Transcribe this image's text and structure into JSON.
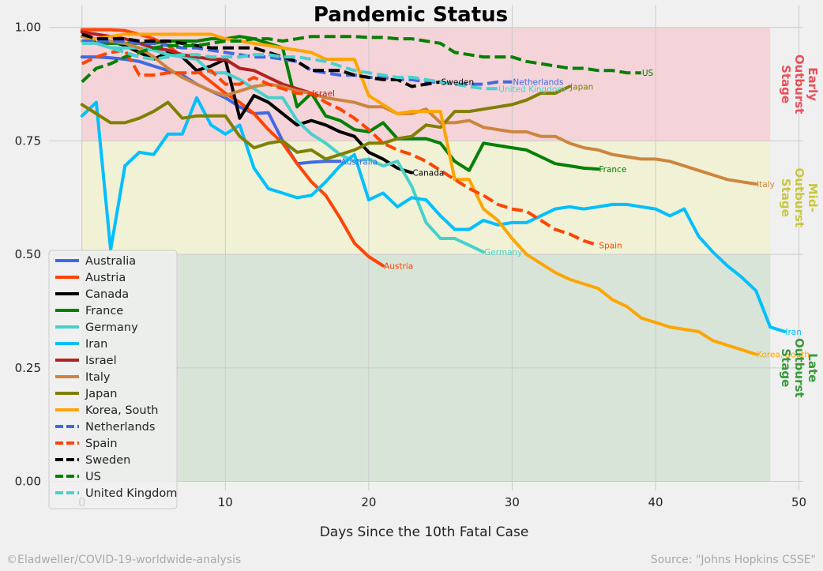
{
  "chart_data": {
    "type": "line",
    "title": "Pandemic Status",
    "xlabel": "Days Since the 10th Fatal Case",
    "ylabel": "",
    "xlim": [
      -2.3,
      50.3
    ],
    "ylim": [
      -0.02,
      1.05
    ],
    "xticks": [
      0,
      10,
      20,
      30,
      40,
      50
    ],
    "yticks": [
      0.0,
      0.25,
      0.5,
      0.75,
      1.0
    ],
    "ytick_labels": [
      "0.00",
      "0.25",
      "0.50",
      "0.75",
      "1.00"
    ],
    "grid": true,
    "legend_position": "lower-left",
    "bands": [
      {
        "from": 0.75,
        "to": 1.0,
        "x_to": 48,
        "color": "#f4d4d8",
        "label": "Early Outburst Stage",
        "lines": [
          "Early",
          "Outburst",
          "Stage"
        ],
        "text_color": "#e8505a"
      },
      {
        "from": 0.5,
        "to": 0.75,
        "x_to": 48,
        "color": "#f1f1d5",
        "label": "Mid-Outburst Stage",
        "lines": [
          "Mid-",
          "Outburst",
          "Stage"
        ],
        "text_color": "#c8c840"
      },
      {
        "from": 0.0,
        "to": 0.5,
        "x_to": 48,
        "color": "#d8e4d8",
        "label": "Late Outburst Stage",
        "lines": [
          "Late",
          "Outburst",
          "Stage"
        ],
        "text_color": "#3a9a3a"
      }
    ],
    "series": [
      {
        "name": "Australia",
        "color": "#4169e1",
        "dash": false,
        "y": [
          0.935,
          0.935,
          0.933,
          0.93,
          0.925,
          0.915,
          0.905,
          0.895,
          0.875,
          0.86,
          0.845,
          0.825,
          0.81,
          0.812,
          0.75,
          0.7,
          0.703,
          0.705,
          0.705
        ]
      },
      {
        "name": "Austria",
        "color": "#ff4500",
        "dash": false,
        "y": [
          0.995,
          0.995,
          0.995,
          0.993,
          0.985,
          0.975,
          0.96,
          0.935,
          0.905,
          0.88,
          0.855,
          0.835,
          0.81,
          0.775,
          0.745,
          0.7,
          0.66,
          0.63,
          0.58,
          0.525,
          0.495,
          0.475
        ]
      },
      {
        "name": "Canada",
        "color": "#000000",
        "dash": false,
        "y": [
          0.99,
          0.965,
          0.97,
          0.96,
          0.945,
          0.93,
          0.945,
          0.935,
          0.905,
          0.915,
          0.93,
          0.8,
          0.85,
          0.835,
          0.81,
          0.785,
          0.795,
          0.785,
          0.77,
          0.76,
          0.725,
          0.71,
          0.69,
          0.68
        ]
      },
      {
        "name": "France",
        "color": "#008000",
        "dash": false,
        "y": [
          0.97,
          0.965,
          0.965,
          0.965,
          0.965,
          0.965,
          0.97,
          0.97,
          0.97,
          0.975,
          0.975,
          0.98,
          0.975,
          0.965,
          0.955,
          0.825,
          0.855,
          0.805,
          0.795,
          0.775,
          0.77,
          0.79,
          0.755,
          0.755,
          0.755,
          0.745,
          0.705,
          0.685,
          0.745,
          0.74,
          0.735,
          0.73,
          0.715,
          0.7,
          0.695,
          0.69,
          0.688
        ]
      },
      {
        "name": "Germany",
        "color": "#48d1cc",
        "dash": false,
        "y": [
          0.97,
          0.965,
          0.955,
          0.955,
          0.955,
          0.95,
          0.94,
          0.935,
          0.93,
          0.9,
          0.9,
          0.885,
          0.865,
          0.845,
          0.845,
          0.795,
          0.765,
          0.745,
          0.72,
          0.705,
          0.71,
          0.695,
          0.705,
          0.65,
          0.57,
          0.535,
          0.535,
          0.52,
          0.505
        ]
      },
      {
        "name": "Iran",
        "color": "#00bfff",
        "dash": false,
        "y": [
          0.805,
          0.835,
          0.51,
          0.695,
          0.725,
          0.72,
          0.765,
          0.765,
          0.845,
          0.785,
          0.765,
          0.785,
          0.69,
          0.645,
          0.635,
          0.625,
          0.63,
          0.66,
          0.695,
          0.72,
          0.62,
          0.635,
          0.605,
          0.625,
          0.62,
          0.585,
          0.555,
          0.555,
          0.575,
          0.565,
          0.57,
          0.57,
          0.585,
          0.6,
          0.605,
          0.6,
          0.605,
          0.61,
          0.61,
          0.605,
          0.6,
          0.585,
          0.6,
          0.54,
          0.505,
          0.475,
          0.45,
          0.42,
          0.34,
          0.33
        ]
      },
      {
        "name": "Israel",
        "color": "#b22222",
        "dash": false,
        "y": [
          0.99,
          0.985,
          0.98,
          0.975,
          0.965,
          0.955,
          0.95,
          0.94,
          0.935,
          0.93,
          0.93,
          0.91,
          0.905,
          0.89,
          0.875,
          0.865,
          0.855
        ]
      },
      {
        "name": "Italy",
        "color": "#cd853f",
        "dash": false,
        "y": [
          0.98,
          0.975,
          0.97,
          0.965,
          0.955,
          0.935,
          0.91,
          0.89,
          0.875,
          0.86,
          0.85,
          0.86,
          0.87,
          0.875,
          0.87,
          0.86,
          0.855,
          0.845,
          0.84,
          0.835,
          0.825,
          0.825,
          0.81,
          0.81,
          0.82,
          0.79,
          0.79,
          0.795,
          0.78,
          0.775,
          0.77,
          0.77,
          0.76,
          0.76,
          0.745,
          0.735,
          0.73,
          0.72,
          0.715,
          0.71,
          0.71,
          0.705,
          0.695,
          0.685,
          0.675,
          0.665,
          0.66,
          0.655
        ]
      },
      {
        "name": "Japan",
        "color": "#808000",
        "dash": false,
        "y": [
          0.83,
          0.81,
          0.79,
          0.79,
          0.8,
          0.815,
          0.835,
          0.8,
          0.805,
          0.805,
          0.805,
          0.76,
          0.735,
          0.745,
          0.75,
          0.725,
          0.73,
          0.71,
          0.72,
          0.73,
          0.745,
          0.745,
          0.755,
          0.76,
          0.785,
          0.78,
          0.815,
          0.815,
          0.82,
          0.825,
          0.83,
          0.84,
          0.855,
          0.855,
          0.87
        ]
      },
      {
        "name": "Korea, South",
        "color": "#ffa500",
        "dash": false,
        "y": [
          0.97,
          0.975,
          0.98,
          0.985,
          0.985,
          0.985,
          0.985,
          0.985,
          0.985,
          0.985,
          0.975,
          0.97,
          0.965,
          0.96,
          0.955,
          0.95,
          0.945,
          0.93,
          0.93,
          0.93,
          0.85,
          0.83,
          0.81,
          0.815,
          0.815,
          0.815,
          0.665,
          0.665,
          0.6,
          0.575,
          0.535,
          0.5,
          0.48,
          0.46,
          0.445,
          0.435,
          0.425,
          0.4,
          0.385,
          0.36,
          0.35,
          0.34,
          0.335,
          0.33,
          0.31,
          0.3,
          0.29,
          0.28
        ]
      },
      {
        "name": "Netherlands",
        "color": "#4169e1",
        "dash": true,
        "y": [
          0.97,
          0.97,
          0.97,
          0.97,
          0.965,
          0.965,
          0.96,
          0.955,
          0.955,
          0.95,
          0.945,
          0.94,
          0.935,
          0.935,
          0.93,
          0.925,
          0.905,
          0.9,
          0.895,
          0.895,
          0.89,
          0.89,
          0.885,
          0.885,
          0.88,
          0.88,
          0.875,
          0.875,
          0.875,
          0.88,
          0.88
        ]
      },
      {
        "name": "Spain",
        "color": "#ff4500",
        "dash": true,
        "y": [
          0.92,
          0.935,
          0.945,
          0.95,
          0.895,
          0.895,
          0.9,
          0.9,
          0.9,
          0.905,
          0.875,
          0.875,
          0.89,
          0.875,
          0.865,
          0.855,
          0.855,
          0.835,
          0.82,
          0.8,
          0.775,
          0.745,
          0.73,
          0.72,
          0.705,
          0.685,
          0.665,
          0.645,
          0.63,
          0.61,
          0.6,
          0.595,
          0.575,
          0.555,
          0.545,
          0.53,
          0.52
        ]
      },
      {
        "name": "Sweden",
        "color": "#000000",
        "dash": true,
        "y": [
          0.985,
          0.975,
          0.975,
          0.975,
          0.97,
          0.97,
          0.97,
          0.965,
          0.96,
          0.955,
          0.955,
          0.955,
          0.955,
          0.945,
          0.935,
          0.925,
          0.905,
          0.905,
          0.905,
          0.895,
          0.89,
          0.885,
          0.885,
          0.87,
          0.875,
          0.88
        ]
      },
      {
        "name": "US",
        "color": "#008000",
        "dash": true,
        "y": [
          0.88,
          0.91,
          0.92,
          0.935,
          0.945,
          0.955,
          0.96,
          0.96,
          0.96,
          0.965,
          0.97,
          0.97,
          0.975,
          0.975,
          0.97,
          0.975,
          0.98,
          0.98,
          0.98,
          0.98,
          0.978,
          0.978,
          0.975,
          0.975,
          0.97,
          0.965,
          0.945,
          0.94,
          0.935,
          0.935,
          0.935,
          0.925,
          0.92,
          0.915,
          0.91,
          0.91,
          0.905,
          0.905,
          0.9,
          0.9
        ]
      },
      {
        "name": "United Kingdom",
        "color": "#48d1cc",
        "dash": true,
        "y": [
          0.965,
          0.965,
          0.955,
          0.945,
          0.935,
          0.93,
          0.935,
          0.94,
          0.94,
          0.935,
          0.935,
          0.935,
          0.94,
          0.94,
          0.935,
          0.935,
          0.93,
          0.925,
          0.915,
          0.905,
          0.9,
          0.895,
          0.89,
          0.89,
          0.885,
          0.88,
          0.875,
          0.87,
          0.865,
          0.865
        ]
      }
    ]
  },
  "footer": {
    "left": "©Eladweller/COVID-19-worldwide-analysis",
    "right": "Source: \"Johns Hopkins CSSE\""
  }
}
